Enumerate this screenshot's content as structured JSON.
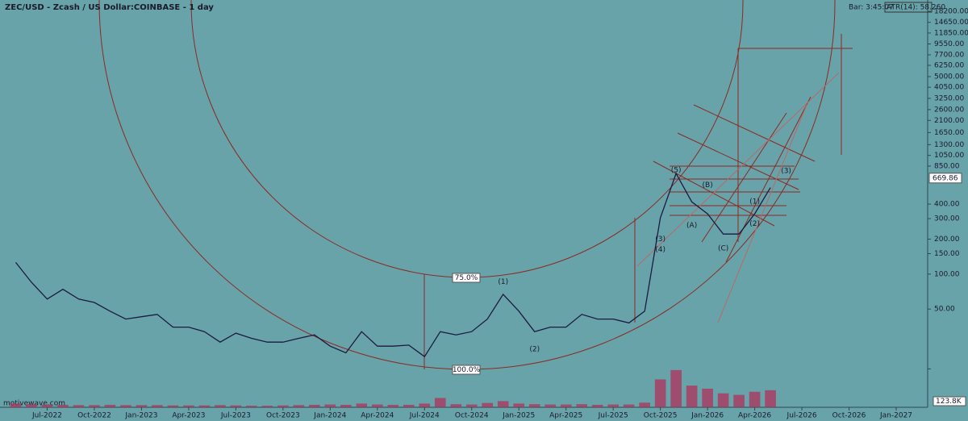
{
  "header": {
    "title": "ZEC/USD - Zcash / US Dollar:COINBASE - 1 day",
    "bar_timer": "Bar: 3:45:07",
    "indicator": "ATR(14): 58.260",
    "watermark": "motivewave.com"
  },
  "chart_data": {
    "type": "line",
    "log_scale": true,
    "color": "#1c1a40",
    "x": [
      "2022-05",
      "2022-06",
      "2022-07",
      "2022-08",
      "2022-09",
      "2022-10",
      "2022-11",
      "2022-12",
      "2023-01",
      "2023-02",
      "2023-03",
      "2023-04",
      "2023-05",
      "2023-06",
      "2023-07",
      "2023-08",
      "2023-09",
      "2023-10",
      "2023-11",
      "2023-12",
      "2024-01",
      "2024-02",
      "2024-03",
      "2024-04",
      "2024-05",
      "2024-06",
      "2024-07",
      "2024-08",
      "2024-09",
      "2024-10",
      "2024-11",
      "2024-12",
      "2025-01",
      "2025-02",
      "2025-03",
      "2025-04",
      "2025-05",
      "2025-06",
      "2025-07",
      "2025-08",
      "2025-09",
      "2025-10",
      "2025-11",
      "2025-12",
      "2026-01",
      "2026-02",
      "2026-03",
      "2026-04",
      "2026-05"
    ],
    "values": [
      126,
      85,
      61,
      74,
      61,
      57,
      48,
      41,
      43,
      45,
      35,
      35,
      32,
      26,
      31,
      28,
      26,
      26,
      28,
      30,
      24,
      21,
      32,
      24,
      24,
      24.5,
      19.5,
      32,
      30,
      32,
      41,
      67,
      48,
      32,
      35,
      35,
      45,
      41,
      41,
      38,
      48,
      304,
      734,
      418,
      330,
      221,
      221,
      330,
      555
    ],
    "volume": {
      "color": "#b0305a",
      "values": [
        12000,
        10000,
        9000,
        8000,
        7000,
        7000,
        8000,
        7000,
        7000,
        7000,
        6000,
        6000,
        6000,
        7000,
        6000,
        5000,
        5000,
        6000,
        7000,
        8000,
        9000,
        8000,
        12000,
        9000,
        8000,
        8000,
        12000,
        30000,
        10000,
        9000,
        14000,
        20000,
        12000,
        10000,
        9000,
        9000,
        10000,
        8000,
        9000,
        9000,
        15000,
        90000,
        120000,
        70000,
        60000,
        45000,
        40000,
        50000,
        55000
      ],
      "ylim": [
        0,
        130000
      ],
      "tick": {
        "value": 123800,
        "label": "123.8K"
      }
    },
    "xlim": [
      "2022-04",
      "2027-03"
    ],
    "xticks": [
      {
        "value": "2022-07",
        "label": "Jul-2022"
      },
      {
        "value": "2022-10",
        "label": "Oct-2022"
      },
      {
        "value": "2023-01",
        "label": "Jan-2023"
      },
      {
        "value": "2023-04",
        "label": "Apr-2023"
      },
      {
        "value": "2023-07",
        "label": "Jul-2023"
      },
      {
        "value": "2023-10",
        "label": "Oct-2023"
      },
      {
        "value": "2024-01",
        "label": "Jan-2024"
      },
      {
        "value": "2024-04",
        "label": "Apr-2024"
      },
      {
        "value": "2024-07",
        "label": "Jul-2024"
      },
      {
        "value": "2024-10",
        "label": "Oct-2024"
      },
      {
        "value": "2025-01",
        "label": "Jan-2025"
      },
      {
        "value": "2025-04",
        "label": "Apr-2025"
      },
      {
        "value": "2025-07",
        "label": "Jul-2025"
      },
      {
        "value": "2025-10",
        "label": "Oct-2025"
      },
      {
        "value": "2026-01",
        "label": "Jan-2026"
      },
      {
        "value": "2026-04",
        "label": "Apr-2026"
      },
      {
        "value": "2026-07",
        "label": "Jul-2026"
      },
      {
        "value": "2026-10",
        "label": "Oct-2026"
      },
      {
        "value": "2027-01",
        "label": "Jan-2027"
      }
    ],
    "ylim": [
      12.5,
      22800
    ],
    "yticks": [
      {
        "value": 18200,
        "label": "18200.00"
      },
      {
        "value": 14650,
        "label": "14650.00"
      },
      {
        "value": 11850,
        "label": "11850.00"
      },
      {
        "value": 9550,
        "label": "9550.00"
      },
      {
        "value": 7700,
        "label": "7700.00"
      },
      {
        "value": 6250,
        "label": "6250.00"
      },
      {
        "value": 5000,
        "label": "5000.00"
      },
      {
        "value": 4050,
        "label": "4050.00"
      },
      {
        "value": 3250,
        "label": "3250.00"
      },
      {
        "value": 2600,
        "label": "2600.00"
      },
      {
        "value": 2100,
        "label": "2100.00"
      },
      {
        "value": 1650,
        "label": "1650.00"
      },
      {
        "value": 1300,
        "label": "1300.00"
      },
      {
        "value": 1050,
        "label": "1050.00"
      },
      {
        "value": 850,
        "label": "850.00"
      },
      {
        "value": 400,
        "label": "400.00"
      },
      {
        "value": 300,
        "label": "300.00"
      },
      {
        "value": 200,
        "label": "200.00"
      },
      {
        "value": 150,
        "label": "150.00"
      },
      {
        "value": 100,
        "label": "100.00"
      },
      {
        "value": 50,
        "label": "50.00"
      }
    ],
    "last_price": 669.86,
    "levels": [
      "75.0%",
      "100.0%"
    ],
    "annotations": [
      {
        "text": "(1)",
        "x": "2024-12",
        "y": 86
      },
      {
        "text": "(2)",
        "x": "2025-02",
        "y": 22.5
      },
      {
        "text": "(3)",
        "x": "2025-10",
        "y": 200
      },
      {
        "text": "(4)",
        "x": "2025-10",
        "y": 163
      },
      {
        "text": "(5)",
        "x": "2025-11",
        "y": 782
      },
      {
        "text": "(A)",
        "x": "2025-12",
        "y": 263
      },
      {
        "text": "(B)",
        "x": "2026-01",
        "y": 585
      },
      {
        "text": "(C)",
        "x": "2026-02",
        "y": 166
      },
      {
        "text": "(1)",
        "x": "2026-04",
        "y": 419
      },
      {
        "text": "(2)",
        "x": "2026-04",
        "y": 271
      },
      {
        "text": "(3)",
        "x": "2026-06",
        "y": 771
      }
    ]
  }
}
